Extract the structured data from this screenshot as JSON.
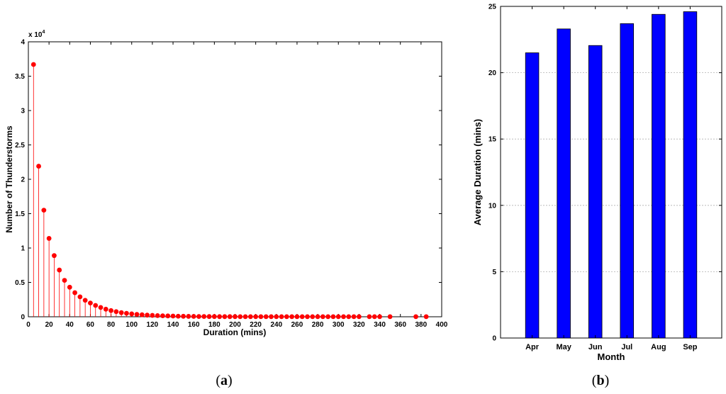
{
  "chart_data": [
    {
      "type": "stem",
      "panel_label": "a",
      "title": "",
      "xlabel": "Duration (mins)",
      "ylabel": "Number of Thunderstorms",
      "y_exponent_label": "x 10",
      "y_exponent_power": "4",
      "xlim": [
        0,
        400
      ],
      "ylim": [
        0,
        4
      ],
      "xticks": [
        "0",
        "20",
        "40",
        "60",
        "80",
        "100",
        "120",
        "140",
        "160",
        "180",
        "200",
        "220",
        "240",
        "260",
        "280",
        "300",
        "320",
        "340",
        "360",
        "380",
        "400"
      ],
      "yticks": [
        "0",
        "0.5",
        "1",
        "1.5",
        "2",
        "2.5",
        "3",
        "3.5",
        "4"
      ],
      "color": "#ff0000",
      "grid": false,
      "points": [
        [
          5,
          3.67
        ],
        [
          10,
          2.19
        ],
        [
          15,
          1.55
        ],
        [
          20,
          1.14
        ],
        [
          25,
          0.89
        ],
        [
          30,
          0.68
        ],
        [
          35,
          0.53
        ],
        [
          40,
          0.43
        ],
        [
          45,
          0.35
        ],
        [
          50,
          0.29
        ],
        [
          55,
          0.24
        ],
        [
          60,
          0.2
        ],
        [
          65,
          0.165
        ],
        [
          70,
          0.135
        ],
        [
          75,
          0.11
        ],
        [
          80,
          0.09
        ],
        [
          85,
          0.075
        ],
        [
          90,
          0.06
        ],
        [
          95,
          0.05
        ],
        [
          100,
          0.042
        ],
        [
          105,
          0.035
        ],
        [
          110,
          0.029
        ],
        [
          115,
          0.024
        ],
        [
          120,
          0.02
        ],
        [
          125,
          0.017
        ],
        [
          130,
          0.014
        ],
        [
          135,
          0.012
        ],
        [
          140,
          0.01
        ],
        [
          145,
          0.008
        ],
        [
          150,
          0.007
        ],
        [
          155,
          0.006
        ],
        [
          160,
          0.005
        ],
        [
          165,
          0.004
        ],
        [
          170,
          0.004
        ],
        [
          175,
          0.003
        ],
        [
          180,
          0.003
        ],
        [
          185,
          0.002
        ],
        [
          190,
          0.002
        ],
        [
          195,
          0.002
        ],
        [
          200,
          0.002
        ],
        [
          205,
          0.001
        ],
        [
          210,
          0.001
        ],
        [
          215,
          0.001
        ],
        [
          220,
          0.001
        ],
        [
          225,
          0.001
        ],
        [
          230,
          0.001
        ],
        [
          235,
          0.001
        ],
        [
          240,
          0.001
        ],
        [
          245,
          0.001
        ],
        [
          250,
          0.001
        ],
        [
          255,
          0.001
        ],
        [
          260,
          0.001
        ],
        [
          265,
          0.001
        ],
        [
          270,
          0.001
        ],
        [
          275,
          0.001
        ],
        [
          280,
          0.001
        ],
        [
          285,
          0.001
        ],
        [
          290,
          0.001
        ],
        [
          295,
          0.001
        ],
        [
          300,
          0.001
        ],
        [
          305,
          0.001
        ],
        [
          310,
          0.001
        ],
        [
          315,
          0.001
        ],
        [
          320,
          0.001
        ],
        [
          330,
          0.001
        ],
        [
          335,
          0.001
        ],
        [
          340,
          0.001
        ],
        [
          350,
          0.001
        ],
        [
          375,
          0.001
        ],
        [
          385,
          0.001
        ]
      ]
    },
    {
      "type": "bar",
      "panel_label": "b",
      "title": "",
      "xlabel": "Month",
      "ylabel": "Average Duration (mins)",
      "categories": [
        "Apr",
        "May",
        "Jun",
        "Jul",
        "Aug",
        "Sep"
      ],
      "values": [
        21.5,
        23.3,
        22.05,
        23.7,
        24.4,
        24.6
      ],
      "ylim": [
        0,
        25
      ],
      "yticks": [
        "0",
        "5",
        "10",
        "15",
        "20",
        "25"
      ],
      "color": "#0000ff",
      "grid": "horizontal dotted"
    }
  ]
}
